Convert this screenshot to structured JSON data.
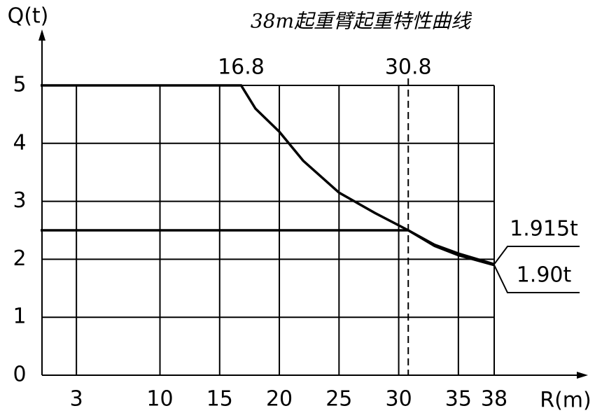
{
  "chart_data": {
    "type": "line",
    "title": "38m起重臂起重特性曲线",
    "x_label": "R(m)",
    "y_label": "Q(t)",
    "xlim": [
      0,
      38
    ],
    "ylim": [
      0,
      5
    ],
    "xticks": [
      3,
      10,
      15,
      20,
      25,
      30,
      35,
      38
    ],
    "yticks": [
      0,
      1,
      2,
      3,
      4,
      5
    ],
    "grid": true,
    "color": "#000000",
    "x_markers": [
      16.8,
      30.8
    ],
    "series": [
      {
        "x": [
          0,
          16.8,
          18,
          20,
          22,
          25,
          28,
          30.8,
          33,
          35,
          38
        ],
        "values": [
          5,
          5,
          4.6,
          4.2,
          3.7,
          3.15,
          2.8,
          2.5,
          2.25,
          2.1,
          1.915
        ],
        "end_label": {
          "value": 1.915,
          "label": "1.915t"
        }
      },
      {
        "x": [
          0,
          30.8,
          33,
          35,
          38
        ],
        "values": [
          2.5,
          2.5,
          2.23,
          2.07,
          1.9
        ],
        "end_label": {
          "value": 1.9,
          "label": "1.90t"
        }
      }
    ]
  }
}
